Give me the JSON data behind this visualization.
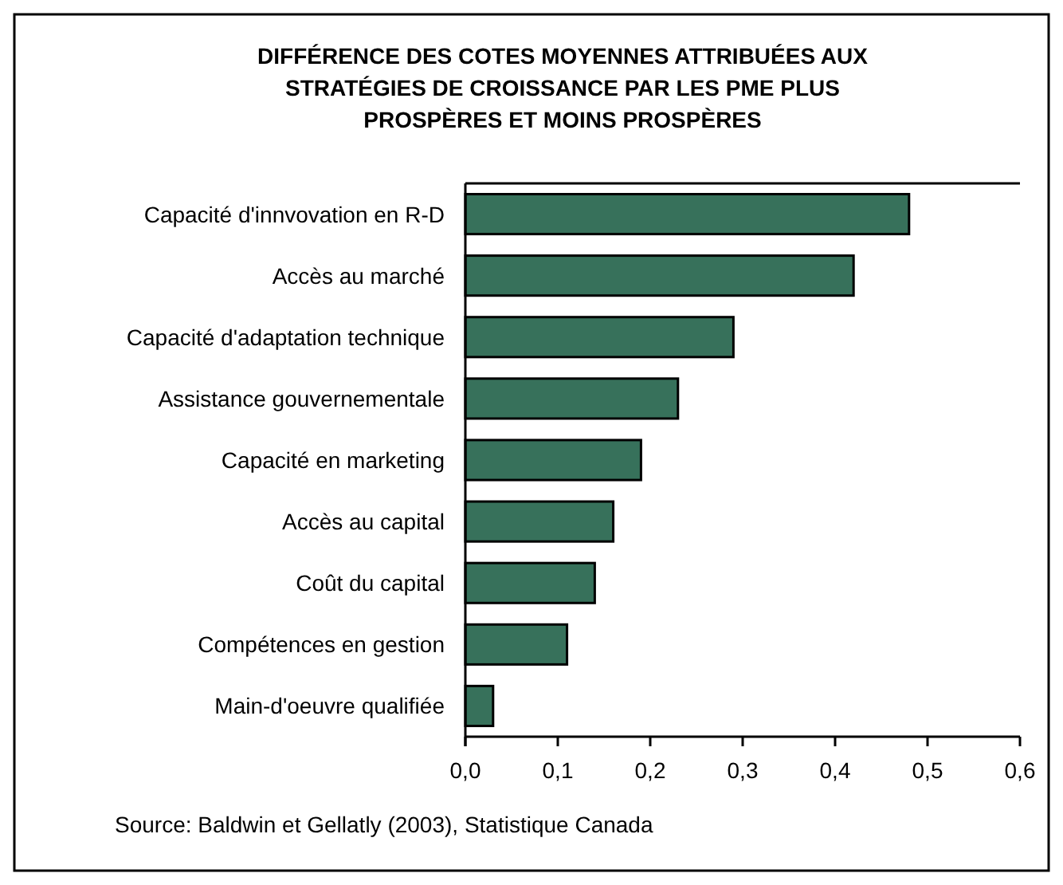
{
  "chart_data": {
    "type": "bar",
    "orientation": "horizontal",
    "title": "DIFFÉRENCE DES COTES MOYENNES ATTRIBUÉES AUX STRATÉGIES DE CROISSANCE PAR LES PME PLUS PROSPÈRES ET MOINS PROSPÈRES",
    "categories": [
      "Capacité d'innvovation en R-D",
      "Accès au marché",
      "Capacité d'adaptation technique",
      "Assistance gouvernementale",
      "Capacité en marketing",
      "Accès au capital",
      "Coût du capital",
      "Compétences en gestion",
      "Main-d'oeuvre qualifiée"
    ],
    "values": [
      0.48,
      0.42,
      0.29,
      0.23,
      0.19,
      0.16,
      0.14,
      0.11,
      0.03
    ],
    "color": "#37715b",
    "xlim": [
      0,
      0.6
    ],
    "xticks": [
      {
        "value": 0,
        "label": "0,0"
      },
      {
        "value": 0.1,
        "label": "0,1"
      },
      {
        "value": 0.2,
        "label": "0,2"
      },
      {
        "value": 0.3,
        "label": "0,3"
      },
      {
        "value": 0.4,
        "label": "0,4"
      },
      {
        "value": 0.5,
        "label": "0,5"
      },
      {
        "value": 0.6,
        "label": "0,6"
      }
    ],
    "grid": false,
    "annotations": [
      "Source: Baldwin et Gellatly (2003), Statistique Canada"
    ]
  }
}
